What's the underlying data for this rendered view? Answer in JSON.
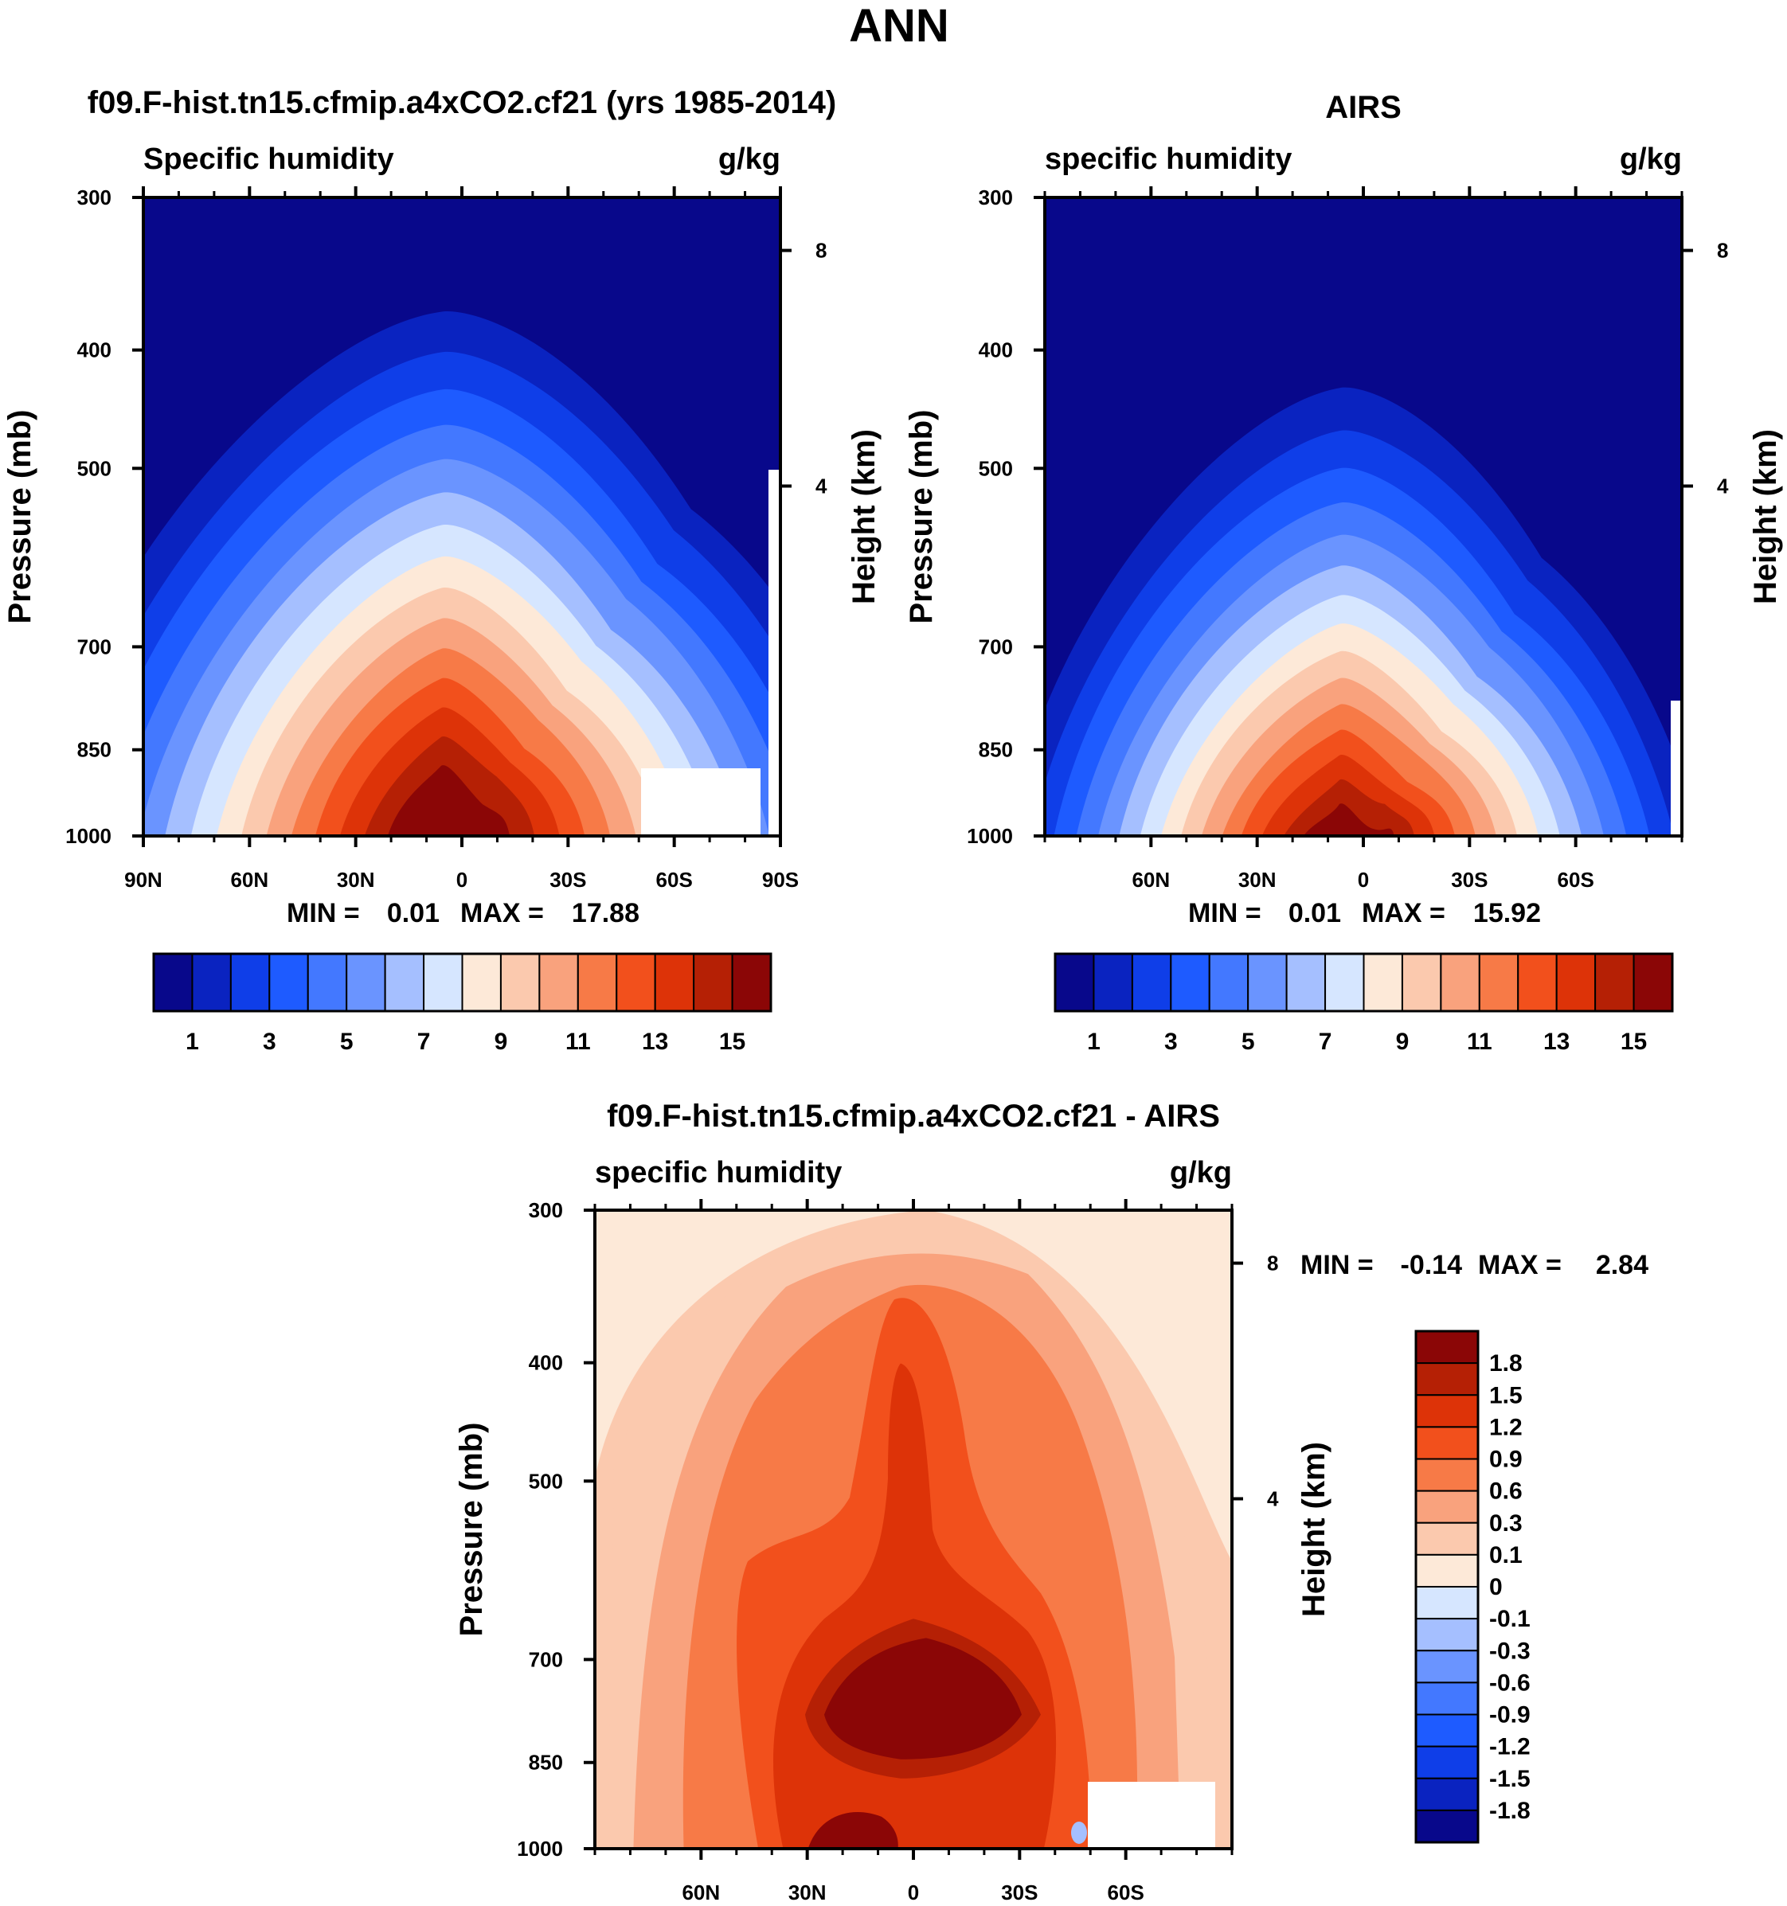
{
  "figure": {
    "title": "ANN"
  },
  "chart_data": [
    {
      "id": "model",
      "type": "contour",
      "title": "f09.F-hist.tn15.cfmip.a4xCO2.cf21 (yrs 1985-2014)",
      "variable": "Specific humidity",
      "units": "g/kg",
      "ylabel": "Pressure (mb)",
      "ylabel_right": "Height (km)",
      "x_ticks": [
        "90N",
        "60N",
        "30N",
        "0",
        "30S",
        "60S",
        "90S"
      ],
      "y_ticks": [
        "300",
        "400",
        "500",
        "700",
        "850",
        "1000"
      ],
      "right_ticks": [
        "8",
        "4"
      ],
      "min": "0.01",
      "max": "17.88",
      "stats_min_label": "MIN =",
      "stats_max_label": "MAX =",
      "contour_peak_g_per_kg": 17.88,
      "contour_peak_lat": -3
    },
    {
      "id": "obs",
      "type": "contour",
      "title": "AIRS",
      "variable": "specific humidity",
      "units": "g/kg",
      "ylabel": "Pressure (mb)",
      "ylabel_right": "Height (km)",
      "x_ticks": [
        "60N",
        "30N",
        "0",
        "30S",
        "60S"
      ],
      "y_ticks": [
        "300",
        "400",
        "500",
        "700",
        "850",
        "1000"
      ],
      "right_ticks": [
        "8",
        "4"
      ],
      "min": "0.01",
      "max": "15.92",
      "stats_min_label": "MIN =",
      "stats_max_label": "MAX =",
      "contour_peak_g_per_kg": 15.92,
      "contour_peak_lat": -3
    },
    {
      "id": "diff",
      "type": "contour",
      "title": "f09.F-hist.tn15.cfmip.a4xCO2.cf21 - AIRS",
      "variable": "specific humidity",
      "units": "g/kg",
      "ylabel": "Pressure (mb)",
      "ylabel_right": "Height (km)",
      "x_ticks": [
        "60N",
        "30N",
        "0",
        "30S",
        "60S"
      ],
      "y_ticks": [
        "300",
        "400",
        "500",
        "700",
        "850",
        "1000"
      ],
      "right_ticks": [
        "8",
        "4"
      ],
      "min": "-0.14",
      "max": "2.84",
      "stats_min_label": "MIN =",
      "stats_max_label": "MAX ="
    }
  ],
  "colorbars": {
    "main": {
      "labels": [
        "1",
        "3",
        "5",
        "7",
        "9",
        "11",
        "13",
        "15"
      ],
      "colors": [
        "#08088b",
        "#0a23c0",
        "#0f3ee8",
        "#1e5bff",
        "#4378ff",
        "#6a94ff",
        "#a5bfff",
        "#d6e6ff",
        "#fde9d8",
        "#fbc9ae",
        "#f9a27d",
        "#f77a47",
        "#f2501c",
        "#dd3308",
        "#b52005",
        "#8b0606"
      ]
    },
    "diff": {
      "labels": [
        "1.8",
        "1.5",
        "1.2",
        "0.9",
        "0.6",
        "0.3",
        "0.1",
        "0",
        "-0.1",
        "-0.3",
        "-0.6",
        "-0.9",
        "-1.2",
        "-1.5",
        "-1.8"
      ],
      "colors": [
        "#8b0606",
        "#b52005",
        "#dd3308",
        "#f2501c",
        "#f77a47",
        "#f9a27d",
        "#fbc9ae",
        "#fde9d8",
        "#d6e6ff",
        "#a5bfff",
        "#6a94ff",
        "#4378ff",
        "#1e5bff",
        "#0f3ee8",
        "#0a23c0",
        "#08088b"
      ]
    }
  }
}
